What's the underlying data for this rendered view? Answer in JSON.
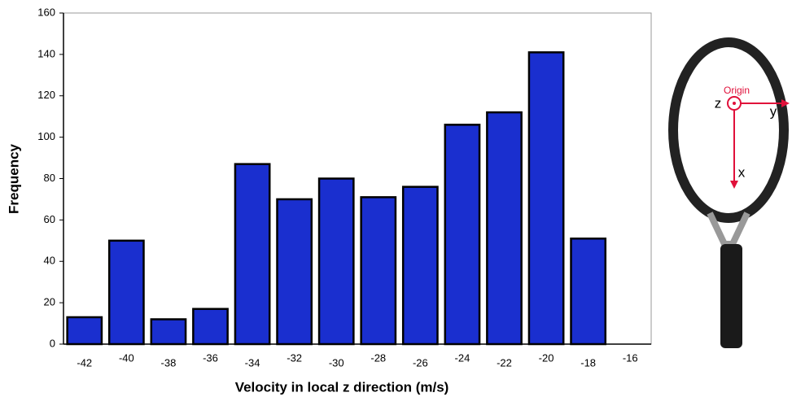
{
  "chart_data": {
    "type": "bar",
    "xlabel": "Velocity in local z direction (m/s)",
    "ylabel": "Frequency",
    "categories": [
      "-42",
      "-40",
      "-38",
      "-36",
      "-34",
      "-32",
      "-30",
      "-28",
      "-26",
      "-24",
      "-22",
      "-20",
      "-18",
      "-16"
    ],
    "values": [
      13,
      50,
      12,
      17,
      87,
      70,
      80,
      71,
      76,
      106,
      112,
      141,
      51,
      0
    ],
    "color": "#1a2fcf",
    "ylim": [
      0,
      160
    ],
    "yticks": [
      0,
      20,
      40,
      60,
      80,
      100,
      120,
      140,
      160
    ],
    "grid": false
  },
  "diagram": {
    "origin": "Origin",
    "z": "z",
    "y": "y",
    "x": "x"
  }
}
